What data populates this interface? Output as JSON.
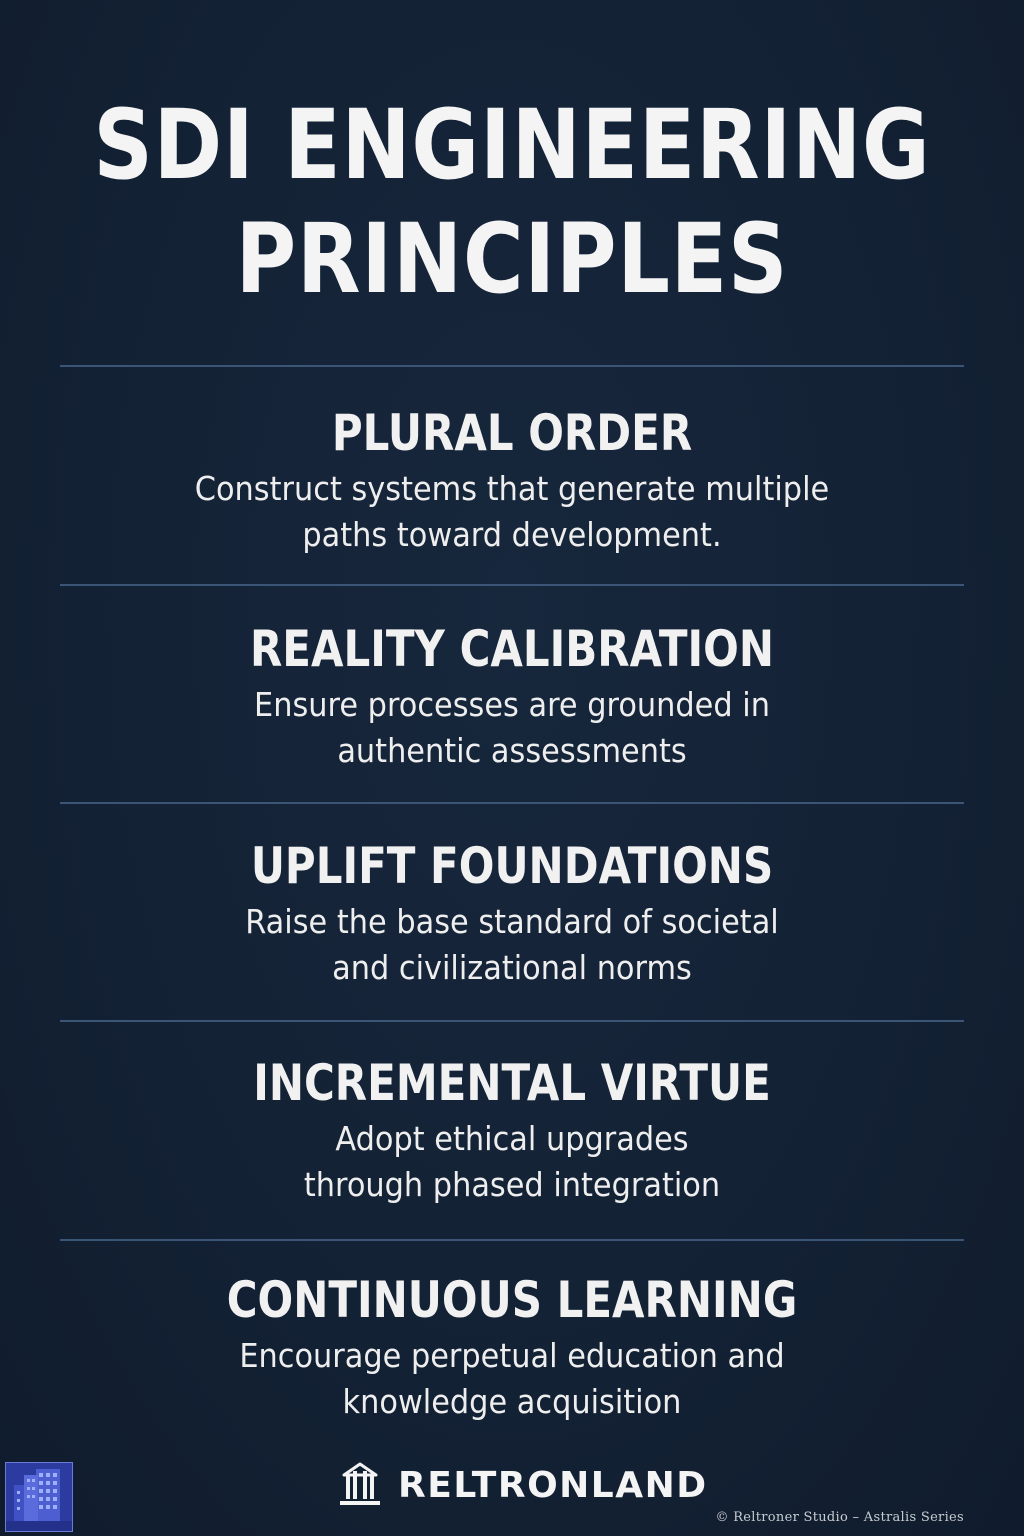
{
  "title": {
    "line1": "SDI ENGINEERING",
    "line2": "PRINCIPLES"
  },
  "sections": [
    {
      "heading": "PLURAL ORDER",
      "lines": [
        "Construct systems that generate multiple",
        "paths toward development."
      ]
    },
    {
      "heading": "REALITY CALIBRATION",
      "lines": [
        "Ensure processes are grounded in",
        "authentic assessments"
      ]
    },
    {
      "heading": "UPLIFT FOUNDATIONS",
      "lines": [
        "Raise the base standard of societal",
        "and civilizational norms"
      ]
    },
    {
      "heading": "INCREMENTAL VIRTUE",
      "lines": [
        "Adopt ethical upgrades",
        "through phased integration"
      ]
    },
    {
      "heading": "CONTINUOUS LEARNING",
      "lines": [
        "Encourage perpetual education and",
        "knowledge acquisition"
      ]
    }
  ],
  "brand": {
    "name": "RELTRONLAND",
    "logo_icon": "building-columns-icon"
  },
  "corner_icon": "city-buildings-icon",
  "copyright": "© Reltroner Studio – Astralis Series",
  "colors": {
    "background": "#142235",
    "divider": "#3a5576",
    "text": "#f2f2f2",
    "corner_badge": "#2a3a9c"
  }
}
